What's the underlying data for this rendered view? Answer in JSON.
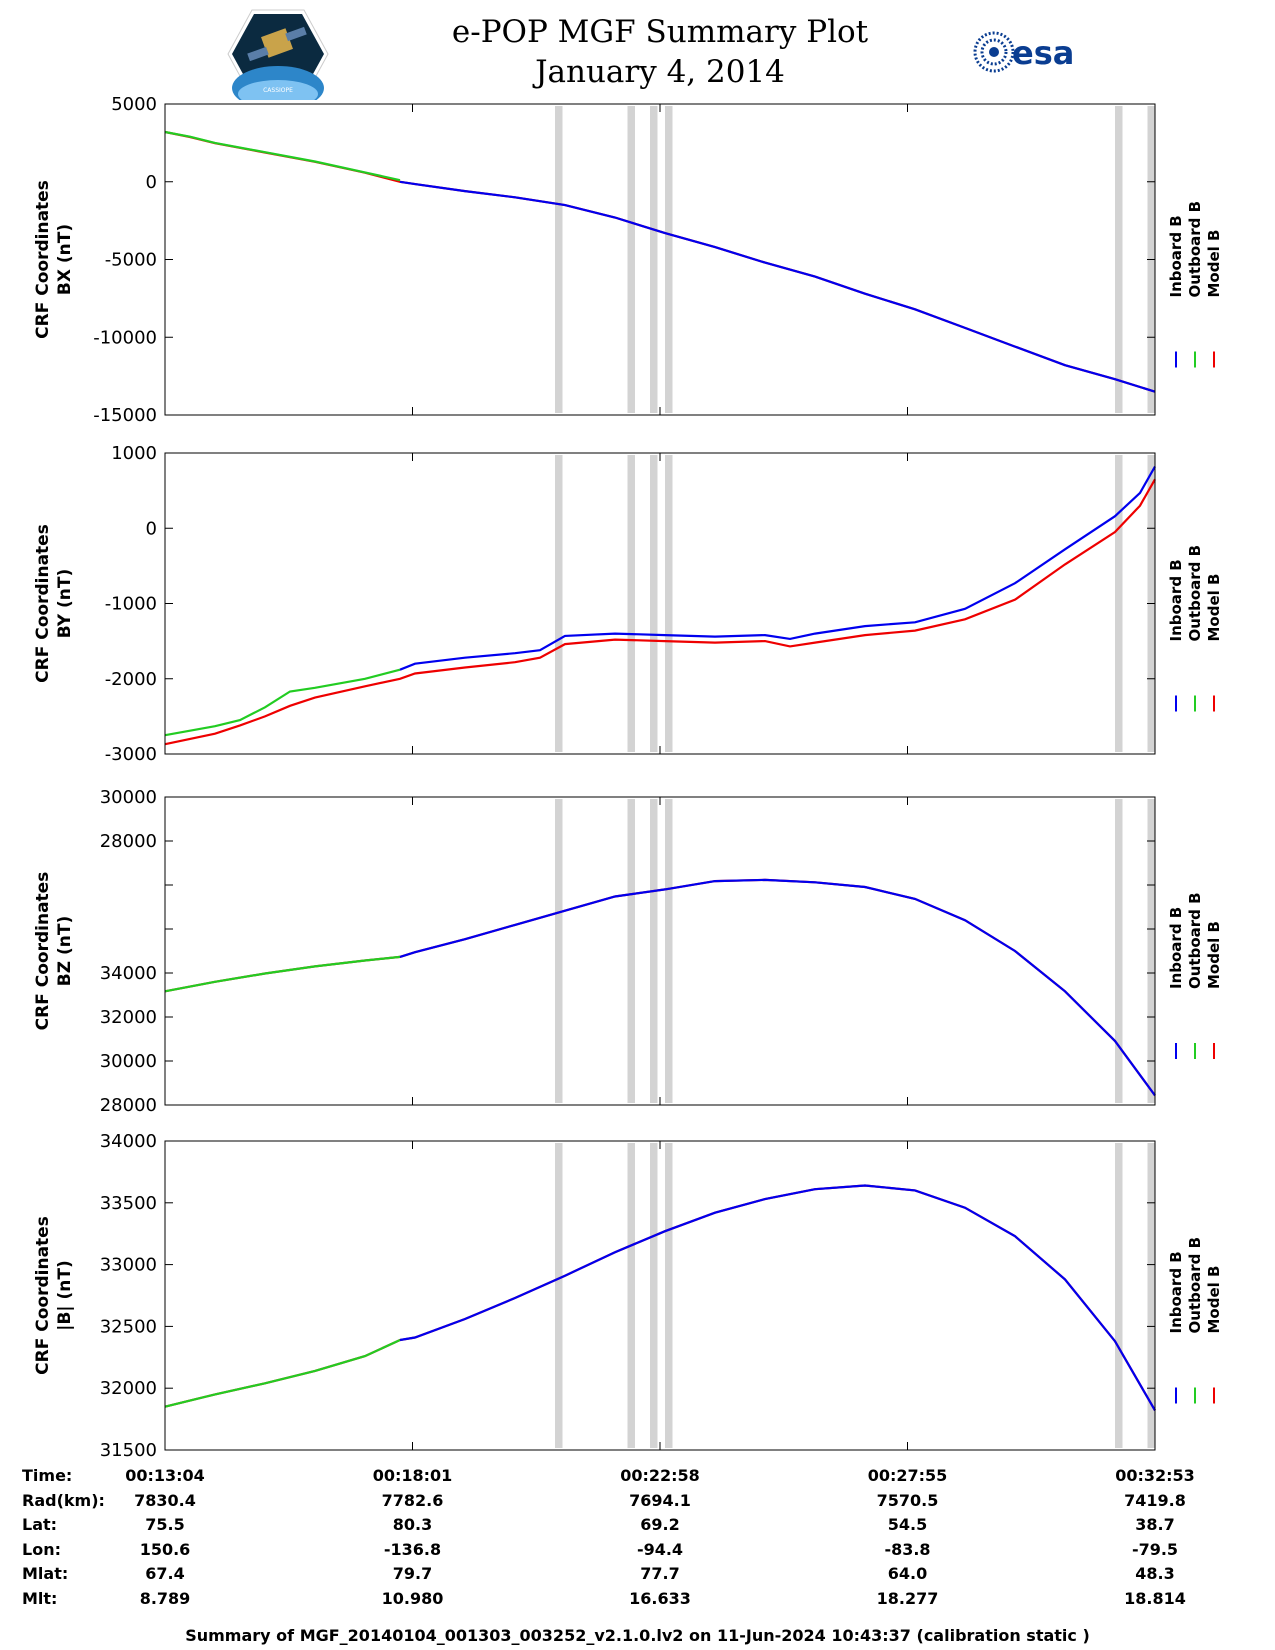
{
  "title": {
    "line1": "e-POP MGF Summary Plot",
    "line2": "January 4, 2014",
    "esa_logo_text": "esa",
    "epop_logo_text": "CASSIOPE"
  },
  "legend_entries": [
    "Inboard B",
    "Outboard B",
    "Model B"
  ],
  "colors": {
    "inboard": "#0000ee",
    "outboard": "#22cc22",
    "model": "#ee0000",
    "gap": "#d3d3d3"
  },
  "time_ticks": [
    "00:13:04",
    "00:18:01",
    "00:22:58",
    "00:27:55",
    "00:32:53"
  ],
  "ephemeris": {
    "rows": [
      {
        "label": "Time:",
        "values": [
          "00:13:04",
          "00:18:01",
          "00:22:58",
          "00:27:55",
          "00:32:53"
        ]
      },
      {
        "label": "Rad(km):",
        "values": [
          "7830.4",
          "7782.6",
          "7694.1",
          "7570.5",
          "7419.8"
        ]
      },
      {
        "label": "Lat:",
        "values": [
          "75.5",
          "80.3",
          "69.2",
          "54.5",
          "38.7"
        ]
      },
      {
        "label": "Lon:",
        "values": [
          "150.6",
          "-136.8",
          "-94.4",
          "-83.8",
          "-79.5"
        ]
      },
      {
        "label": "Mlat:",
        "values": [
          "67.4",
          "79.7",
          "77.7",
          "64.0",
          "48.3"
        ]
      },
      {
        "label": "Mlt:",
        "values": [
          "8.789",
          "10.980",
          "16.633",
          "18.277",
          "18.814"
        ]
      }
    ]
  },
  "footer": "Summary of MGF_20140104_001303_003252_v2.1.0.lv2 on 11-Jun-2024 10:43:37 (calibration static )",
  "chart_data": [
    {
      "type": "line",
      "ylabel": [
        "CRF Coordinates",
        "BX (nT)"
      ],
      "ylim": [
        -15000,
        5000
      ],
      "yticks": [
        5000,
        0,
        -5000,
        -10000,
        -15000
      ],
      "ytick_labels": [
        "5000",
        "0",
        "-5000",
        "-10000",
        "-15000"
      ],
      "x": [
        0,
        0.5,
        1,
        2,
        3,
        4,
        4.7,
        5,
        6,
        7,
        8,
        9,
        9.5,
        10,
        11,
        12,
        13,
        14,
        15,
        16,
        17,
        18,
        19,
        19.8
      ],
      "series": [
        {
          "name": "Inboard B",
          "values": [
            null,
            null,
            null,
            null,
            null,
            null,
            0,
            -150,
            -600,
            -1000,
            -1500,
            -2300,
            -2800,
            -3300,
            -4200,
            -5200,
            -6100,
            -7200,
            -8200,
            -9400,
            -10600,
            -11800,
            -12700,
            -13500
          ]
        },
        {
          "name": "Outboard B",
          "values": [
            3200,
            2900,
            2500,
            1900,
            1300,
            600,
            100,
            null,
            null,
            null,
            null,
            null,
            null,
            null,
            null,
            null,
            null,
            null,
            null,
            null,
            null,
            null,
            null,
            null
          ]
        },
        {
          "name": "Model B",
          "values": [
            3200,
            2880,
            2480,
            1880,
            1280,
            580,
            0,
            -150,
            -600,
            -1000,
            -1500,
            -2300,
            -2800,
            -3300,
            -4200,
            -5200,
            -6100,
            -7200,
            -8200,
            -9400,
            -10600,
            -11800,
            -12700,
            -13500
          ]
        }
      ]
    },
    {
      "type": "line",
      "ylabel": [
        "CRF Coordinates",
        "BY (nT)"
      ],
      "ylim": [
        -3000,
        1000
      ],
      "yticks": [
        1000,
        0,
        -1000,
        -2000,
        -3000
      ],
      "ytick_labels": [
        "1000",
        "0",
        "-1000",
        "-2000",
        "-3000"
      ],
      "x": [
        0,
        1,
        1.5,
        2,
        2.5,
        3,
        4,
        4.7,
        5,
        6,
        7,
        7.5,
        8,
        9,
        10,
        11,
        12,
        12.5,
        13,
        14,
        15,
        16,
        17,
        18,
        19,
        19.5,
        19.8
      ],
      "series": [
        {
          "name": "Inboard B",
          "values": [
            null,
            null,
            null,
            null,
            null,
            null,
            null,
            -1880,
            -1800,
            -1720,
            -1660,
            -1620,
            -1430,
            -1400,
            -1420,
            -1440,
            -1420,
            -1470,
            -1400,
            -1300,
            -1250,
            -1070,
            -730,
            -280,
            160,
            470,
            820
          ]
        },
        {
          "name": "Outboard B",
          "values": [
            -2750,
            -2630,
            -2550,
            -2380,
            -2170,
            -2120,
            -2000,
            -1880,
            null,
            null,
            null,
            null,
            null,
            null,
            null,
            null,
            null,
            null,
            null,
            null,
            null,
            null,
            null,
            null,
            null,
            null,
            null
          ]
        },
        {
          "name": "Model B",
          "values": [
            -2870,
            -2730,
            -2620,
            -2500,
            -2360,
            -2250,
            -2100,
            -2000,
            -1930,
            -1850,
            -1780,
            -1720,
            -1540,
            -1480,
            -1500,
            -1520,
            -1500,
            -1570,
            -1520,
            -1420,
            -1360,
            -1210,
            -950,
            -480,
            -50,
            300,
            650
          ]
        }
      ]
    },
    {
      "type": "line",
      "ylabel": [
        "CRF Coordinates",
        "BZ (nT)"
      ],
      "ylim": [
        28000,
        30000
      ],
      "ytick_labels": [
        "30000",
        "28000",
        "",
        "",
        "34000",
        "32000",
        "30000",
        "28000"
      ],
      "x": [
        0,
        1,
        2,
        3,
        4,
        4.7,
        5,
        6,
        7,
        8,
        9,
        10,
        11,
        12,
        13,
        14,
        15,
        16,
        17,
        18,
        19,
        19.8
      ],
      "series": [
        {
          "name": "Inboard B",
          "values": [
            null,
            null,
            null,
            null,
            null,
            0.675,
            0.655,
            0.6,
            0.54,
            0.48,
            0.42,
            0.39,
            0.355,
            0.35,
            0.36,
            0.38,
            0.43,
            0.52,
            0.65,
            0.82,
            1.03,
            1.26
          ]
        },
        {
          "name": "Outboard B",
          "values": [
            0.82,
            0.78,
            0.745,
            0.715,
            0.69,
            0.675,
            null,
            null,
            null,
            null,
            null,
            null,
            null,
            null,
            null,
            null,
            null,
            null,
            null,
            null,
            null,
            null
          ]
        },
        {
          "name": "Model B",
          "values": [
            0.82,
            0.78,
            0.745,
            0.715,
            0.69,
            0.675,
            0.655,
            0.6,
            0.54,
            0.48,
            0.42,
            0.39,
            0.355,
            0.35,
            0.36,
            0.38,
            0.43,
            0.52,
            0.65,
            0.82,
            1.03,
            1.26
          ]
        }
      ]
    },
    {
      "type": "line",
      "ylabel": [
        "CRF Coordinates",
        "|B| (nT)"
      ],
      "ylim": [
        31500,
        34000
      ],
      "yticks": [
        34000,
        33500,
        33000,
        32500,
        32000,
        31500
      ],
      "ytick_labels": [
        "34000",
        "33500",
        "33000",
        "32500",
        "32000",
        "31500"
      ],
      "x": [
        0,
        1,
        2,
        3,
        4,
        4.7,
        5,
        6,
        7,
        8,
        9,
        10,
        11,
        12,
        13,
        14,
        15,
        16,
        17,
        18,
        19,
        19.8
      ],
      "series": [
        {
          "name": "Inboard B",
          "values": [
            null,
            null,
            null,
            null,
            null,
            32390,
            32410,
            32560,
            32730,
            32910,
            33100,
            33270,
            33420,
            33530,
            33610,
            33640,
            33600,
            33460,
            33230,
            32880,
            32380,
            31820
          ]
        },
        {
          "name": "Outboard B",
          "values": [
            31850,
            31950,
            32040,
            32140,
            32260,
            32390,
            null,
            null,
            null,
            null,
            null,
            null,
            null,
            null,
            null,
            null,
            null,
            null,
            null,
            null,
            null,
            null
          ]
        },
        {
          "name": "Model B",
          "values": [
            31850,
            31950,
            32040,
            32140,
            32260,
            32390,
            32410,
            32560,
            32730,
            32910,
            33100,
            33270,
            33420,
            33530,
            33610,
            33640,
            33600,
            33460,
            33230,
            32880,
            32380,
            31820
          ]
        }
      ]
    }
  ],
  "data_gaps_minutes": [
    [
      7.8,
      7.95
    ],
    [
      9.25,
      9.4
    ],
    [
      9.7,
      9.85
    ],
    [
      10.0,
      10.15
    ],
    [
      19.0,
      19.15
    ],
    [
      19.65,
      19.8
    ]
  ]
}
